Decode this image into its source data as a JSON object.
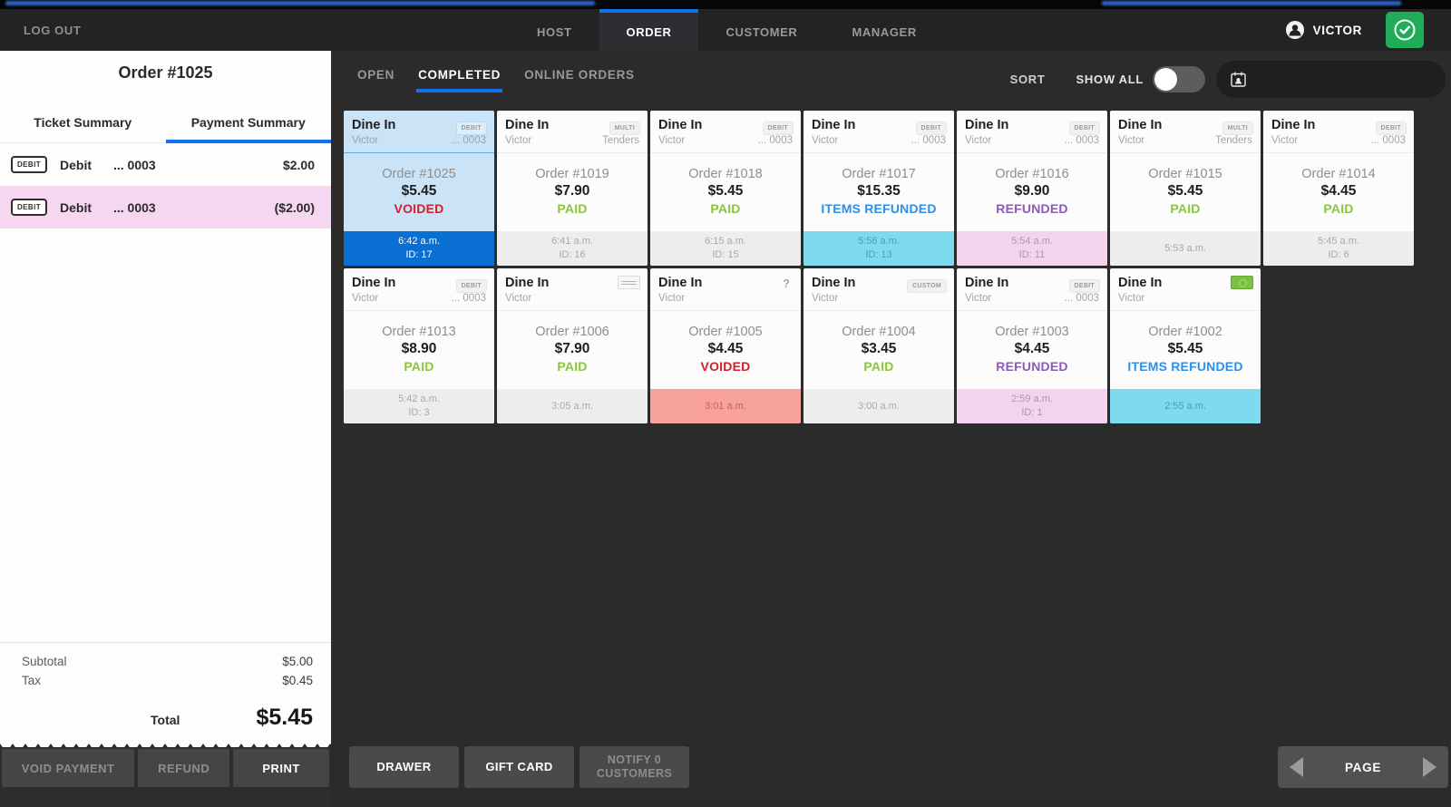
{
  "nav": {
    "logout": "LOG OUT",
    "tabs": [
      {
        "label": "HOST",
        "active": false
      },
      {
        "label": "ORDER",
        "active": true
      },
      {
        "label": "CUSTOMER",
        "active": false
      },
      {
        "label": "MANAGER",
        "active": false
      }
    ],
    "user": "VICTOR"
  },
  "receipt": {
    "title": "Order #1025",
    "tabs": [
      {
        "label": "Ticket Summary",
        "active": false
      },
      {
        "label": "Payment Summary",
        "active": true
      }
    ],
    "payments": [
      {
        "badge": "DEBIT",
        "method": "Debit",
        "card": "... 0003",
        "amount": "$2.00",
        "is_refund": false
      },
      {
        "badge": "DEBIT",
        "method": "Debit",
        "card": "... 0003",
        "amount": "($2.00)",
        "is_refund": true
      }
    ],
    "totals": {
      "subtotal_label": "Subtotal",
      "subtotal": "$5.00",
      "tax_label": "Tax",
      "tax": "$0.45",
      "total_label": "Total",
      "total": "$5.45"
    },
    "actions": [
      {
        "label": "VOID PAYMENT",
        "enabled": false
      },
      {
        "label": "REFUND",
        "enabled": false
      },
      {
        "label": "PRINT",
        "enabled": true
      }
    ]
  },
  "toolbar": {
    "tabs": [
      {
        "label": "OPEN",
        "active": false
      },
      {
        "label": "COMPLETED",
        "active": true
      },
      {
        "label": "ONLINE ORDERS",
        "active": false
      }
    ],
    "sort": "SORT",
    "show_all": "SHOW ALL",
    "show_all_on": false
  },
  "colors": {
    "accent_blue": "#1271ee",
    "paid": "#8bc53f",
    "voided": "#d0202e",
    "refunded": "#8c5bb1",
    "items_refunded": "#2e8fe8",
    "selected_card_bg": "#cbe3f7",
    "selected_footer_bg": "#0a6fd2"
  },
  "order_rows": [
    [
      {
        "type": "Dine In",
        "server": "Victor",
        "right": "... 0003",
        "badge": {
          "kind": "text",
          "label": "DEBIT"
        },
        "order": "Order #1025",
        "amount": "$5.45",
        "status": "VOIDED",
        "time": "6:42 a.m.",
        "ticket": "ID: 17",
        "footer": "blue",
        "selected": true
      },
      {
        "type": "Dine In",
        "server": "Victor",
        "right": "Tenders",
        "badge": {
          "kind": "text",
          "label": "MULTI"
        },
        "order": "Order #1019",
        "amount": "$7.90",
        "status": "PAID",
        "time": "6:41 a.m.",
        "ticket": "ID: 16",
        "footer": "gray",
        "selected": false
      },
      {
        "type": "Dine In",
        "server": "Victor",
        "right": "... 0003",
        "badge": {
          "kind": "text",
          "label": "DEBIT"
        },
        "order": "Order #1018",
        "amount": "$5.45",
        "status": "PAID",
        "time": "6:15 a.m.",
        "ticket": "ID: 15",
        "footer": "gray",
        "selected": false
      },
      {
        "type": "Dine In",
        "server": "Victor",
        "right": "... 0003",
        "badge": {
          "kind": "text",
          "label": "DEBIT"
        },
        "order": "Order #1017",
        "amount": "$15.35",
        "status": "ITEMS REFUNDED",
        "time": "5:56 a.m.",
        "ticket": "ID: 13",
        "footer": "cyan",
        "selected": false
      },
      {
        "type": "Dine In",
        "server": "Victor",
        "right": "... 0003",
        "badge": {
          "kind": "text",
          "label": "DEBIT"
        },
        "order": "Order #1016",
        "amount": "$9.90",
        "status": "REFUNDED",
        "time": "5:54 a.m.",
        "ticket": "ID: 11",
        "footer": "pink",
        "selected": false
      },
      {
        "type": "Dine In",
        "server": "Victor",
        "right": "Tenders",
        "badge": {
          "kind": "text",
          "label": "MULTI"
        },
        "order": "Order #1015",
        "amount": "$5.45",
        "status": "PAID",
        "time": "5:53 a.m.",
        "ticket": "",
        "footer": "gray",
        "selected": false
      },
      {
        "type": "Dine In",
        "server": "Victor",
        "right": "... 0003",
        "badge": {
          "kind": "text",
          "label": "DEBIT"
        },
        "order": "Order #1014",
        "amount": "$4.45",
        "status": "PAID",
        "time": "5:45 a.m.",
        "ticket": "ID: 6",
        "footer": "gray",
        "selected": false
      }
    ],
    [
      {
        "type": "Dine In",
        "server": "Victor",
        "right": "... 0003",
        "badge": {
          "kind": "text",
          "label": "DEBIT"
        },
        "order": "Order #1013",
        "amount": "$8.90",
        "status": "PAID",
        "time": "5:42 a.m.",
        "ticket": "ID: 3",
        "footer": "gray",
        "selected": false
      },
      {
        "type": "Dine In",
        "server": "Victor",
        "right": "",
        "badge": {
          "kind": "check-icon",
          "label": ""
        },
        "order": "Order #1006",
        "amount": "$7.90",
        "status": "PAID",
        "time": "3:05 a.m.",
        "ticket": "",
        "footer": "gray",
        "selected": false
      },
      {
        "type": "Dine In",
        "server": "Victor",
        "right": "",
        "badge": {
          "kind": "question",
          "label": "?"
        },
        "order": "Order #1005",
        "amount": "$4.45",
        "status": "VOIDED",
        "time": "3:01 a.m.",
        "ticket": "",
        "footer": "salmon",
        "selected": false
      },
      {
        "type": "Dine In",
        "server": "Victor",
        "right": "",
        "badge": {
          "kind": "text",
          "label": "CUSTOM"
        },
        "order": "Order #1004",
        "amount": "$3.45",
        "status": "PAID",
        "time": "3:00 a.m.",
        "ticket": "",
        "footer": "gray",
        "selected": false
      },
      {
        "type": "Dine In",
        "server": "Victor",
        "right": "... 0003",
        "badge": {
          "kind": "text",
          "label": "DEBIT"
        },
        "order": "Order #1003",
        "amount": "$4.45",
        "status": "REFUNDED",
        "time": "2:59 a.m.",
        "ticket": "ID: 1",
        "footer": "pink",
        "selected": false
      },
      {
        "type": "Dine In",
        "server": "Victor",
        "right": "",
        "badge": {
          "kind": "cash-icon",
          "label": ""
        },
        "order": "Order #1002",
        "amount": "$5.45",
        "status": "ITEMS REFUNDED",
        "time": "2:55 a.m.",
        "ticket": "",
        "footer": "cyan",
        "selected": false
      }
    ]
  ],
  "footer": {
    "buttons": [
      {
        "label": "DRAWER",
        "enabled": true
      },
      {
        "label": "GIFT CARD",
        "enabled": true
      },
      {
        "label": "NOTIFY 0 CUSTOMERS",
        "enabled": false
      }
    ],
    "page": "PAGE"
  }
}
